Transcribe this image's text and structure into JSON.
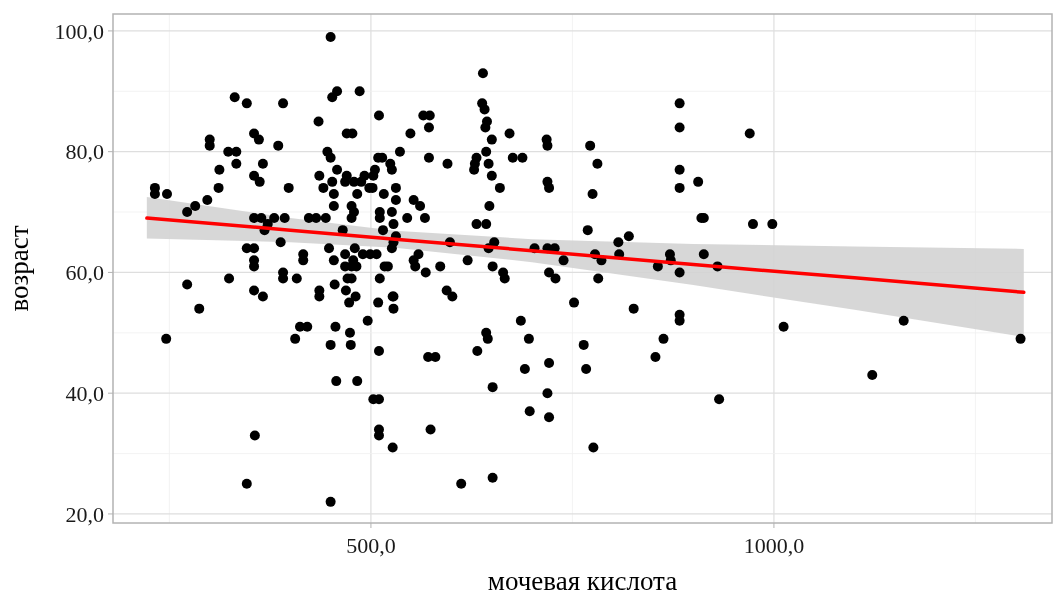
{
  "chart_data": {
    "type": "scatter",
    "xlabel": "мочевая кислота",
    "ylabel": "возраст",
    "xlim": [
      180,
      1345
    ],
    "ylim": [
      18.5,
      102.8
    ],
    "xticks": [
      {
        "value": 250,
        "label": null
      },
      {
        "value": 500,
        "label": "500,0"
      },
      {
        "value": 750,
        "label": null
      },
      {
        "value": 1000,
        "label": "1000,0"
      },
      {
        "value": 1250,
        "label": null
      }
    ],
    "yticks": [
      {
        "value": 20,
        "label": "20,0"
      },
      {
        "value": 30,
        "label": null
      },
      {
        "value": 40,
        "label": "40,0"
      },
      {
        "value": 50,
        "label": null
      },
      {
        "value": 60,
        "label": "60,0"
      },
      {
        "value": 70,
        "label": null
      },
      {
        "value": 80,
        "label": "80,0"
      },
      {
        "value": 90,
        "label": null
      },
      {
        "value": 100,
        "label": "100,0"
      }
    ],
    "grid": true,
    "series": [
      {
        "marker": "circle",
        "color": "#000000",
        "x": [
          232,
          232,
          247,
          246,
          272,
          272,
          282,
          287,
          297,
          300,
          300,
          311,
          312,
          323,
          324,
          331,
          333,
          333,
          346,
          346,
          346,
          355,
          355,
          355,
          355,
          355,
          355,
          355,
          356,
          361,
          362,
          366,
          364,
          366,
          368,
          372,
          380,
          385,
          388,
          391,
          391,
          391,
          393,
          398,
          406,
          408,
          412,
          416,
          416,
          421,
          423,
          432,
          435,
          436,
          436,
          436,
          441,
          444,
          446,
          448,
          450,
          450,
          450,
          450,
          452,
          452,
          454,
          454,
          454,
          455,
          456,
          457,
          458,
          458,
          465,
          468,
          468,
          468,
          469,
          470,
          470,
          471,
          473,
          474,
          475,
          476,
          476,
          476,
          476,
          477,
          478,
          479,
          479,
          480,
          481,
          482,
          483,
          483,
          486,
          488,
          490,
          492,
          496,
          498,
          499,
          502,
          503,
          503,
          505,
          507,
          509,
          509,
          510,
          510,
          510,
          510,
          510,
          511,
          511,
          511,
          514,
          515,
          516,
          517,
          521,
          524,
          526,
          526,
          526,
          527,
          527,
          528,
          528,
          528,
          528,
          531,
          531,
          531,
          536,
          545,
          549,
          553,
          553,
          555,
          559,
          561,
          565,
          567,
          568,
          571,
          572,
          573,
          572,
          574,
          580,
          586,
          594,
          595,
          598,
          601,
          612,
          620,
          628,
          629,
          631,
          631,
          632,
          638,
          639,
          641,
          642,
          643,
          643,
          643,
          644,
          645,
          646,
          646,
          647,
          650,
          650,
          651,
          651,
          651,
          653,
          660,
          664,
          666,
          672,
          676,
          686,
          688,
          691,
          696,
          697,
          703,
          718,
          719,
          719,
          721,
          719,
          721,
          721,
          719,
          721,
          728,
          729,
          739,
          752,
          764,
          767,
          769,
          772,
          775,
          776,
          778,
          781,
          782,
          786,
          807,
          808,
          820,
          826,
          853,
          856,
          863,
          871,
          872,
          883,
          883,
          883,
          883,
          883,
          883,
          883,
          906,
          910,
          913,
          913,
          930,
          932,
          970,
          974,
          998,
          1012,
          1122,
          1161,
          1306
        ],
        "values": [
          74,
          73,
          73,
          49,
          58,
          70,
          71,
          54,
          72,
          82,
          81,
          74,
          77,
          80,
          59,
          89,
          80,
          78,
          88,
          64,
          25,
          83,
          76,
          69,
          64,
          62,
          61,
          57,
          33,
          82,
          75,
          78,
          69,
          56,
          67,
          68,
          69,
          81,
          65,
          88,
          60,
          59,
          69,
          74,
          49,
          59,
          51,
          63,
          62,
          51,
          69,
          69,
          85,
          76,
          57,
          56,
          74,
          69,
          80,
          64,
          99,
          22,
          48,
          79,
          89,
          75,
          73,
          71,
          62,
          58,
          51,
          42,
          90,
          77,
          67,
          75,
          63,
          61,
          57,
          83,
          76,
          59,
          55,
          50,
          48,
          71,
          69,
          61,
          59,
          83,
          62,
          75,
          70,
          64,
          56,
          61,
          73,
          42,
          90,
          75,
          63,
          76,
          52,
          74,
          63,
          74,
          39,
          76,
          77,
          63,
          79,
          55,
          86,
          47,
          39,
          34,
          33,
          70,
          69,
          59,
          79,
          67,
          73,
          61,
          61,
          78,
          77,
          70,
          64,
          56,
          31,
          68,
          65,
          56,
          54,
          74,
          72,
          66,
          80,
          69,
          83,
          72,
          62,
          61,
          63,
          71,
          86,
          69,
          60,
          46,
          84,
          86,
          79,
          34,
          46,
          61,
          57,
          78,
          65,
          56,
          25,
          62,
          77,
          78,
          79,
          68,
          47,
          88,
          93,
          87,
          84,
          80,
          68,
          50,
          85,
          49,
          78,
          64,
          71,
          82,
          76,
          61,
          41,
          26,
          65,
          74,
          60,
          59,
          83,
          79,
          52,
          79,
          44,
          49,
          37,
          64,
          82,
          81,
          75,
          74,
          64,
          60,
          45,
          40,
          36,
          64,
          59,
          62,
          55,
          48,
          44,
          67,
          81,
          73,
          31,
          63,
          78,
          59,
          62,
          65,
          63,
          66,
          54,
          46,
          61,
          49,
          63,
          62,
          88,
          84,
          77,
          74,
          60,
          53,
          52,
          75,
          69,
          69,
          63,
          61,
          39,
          83,
          68,
          68,
          51,
          43,
          52,
          49
        ]
      },
      {
        "type": "line",
        "color": "#ff0000",
        "x": [
          222,
          400,
          530,
          700,
          900,
          1100,
          1310
        ],
        "values": [
          69.0,
          67.0,
          65.5,
          63.6,
          61.3,
          59.1,
          56.7
        ],
        "lower": [
          65.6,
          65.0,
          64.1,
          61.7,
          57.9,
          53.8,
          49.3
        ],
        "upper": [
          72.5,
          69.0,
          66.9,
          65.5,
          64.7,
          64.3,
          63.9
        ]
      }
    ]
  }
}
